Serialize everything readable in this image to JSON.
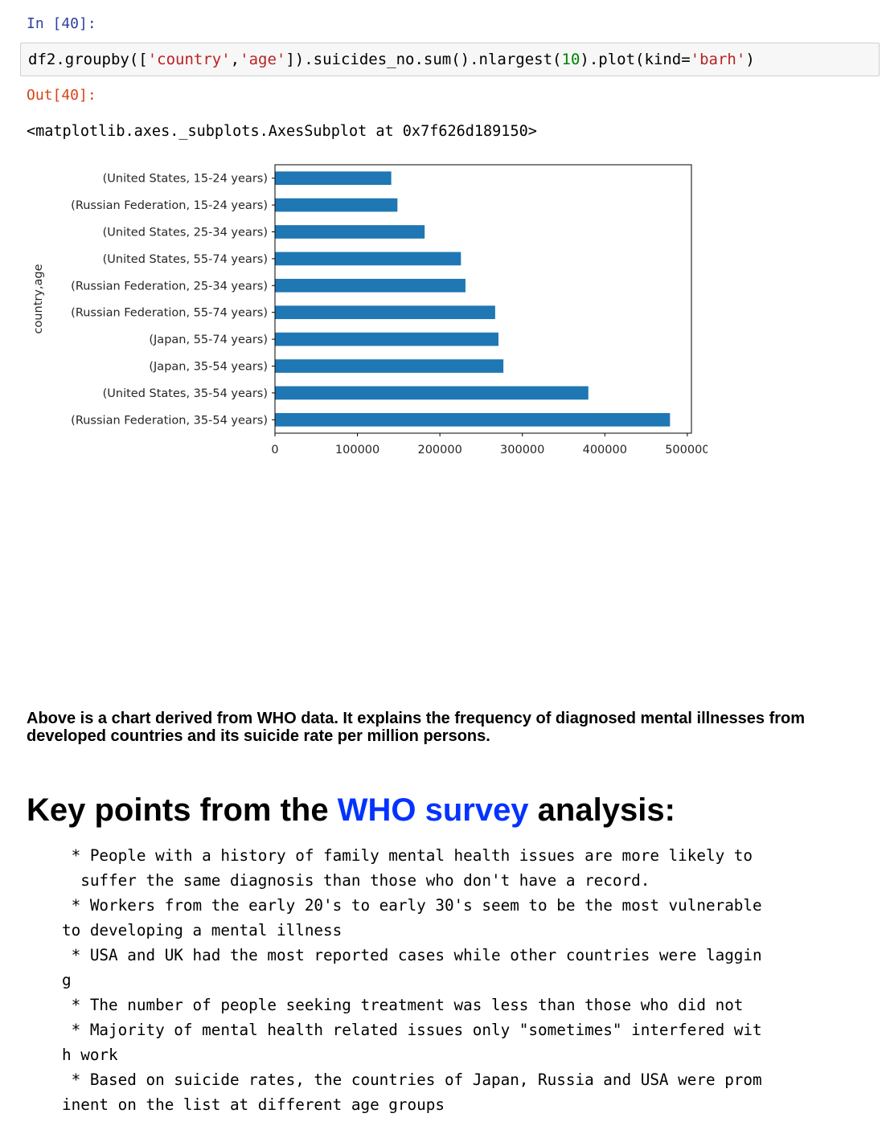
{
  "cell_in": {
    "prompt": "In [40]:"
  },
  "code": {
    "p1": "df2.groupby([",
    "s1": "'country'",
    "p2": ",",
    "s2": "'age'",
    "p3": "]).suicides_no.sum().nlargest(",
    "n1": "10",
    "p4": ").plot(kind=",
    "s3": "'barh'",
    "p5": ")"
  },
  "cell_out": {
    "prompt": "Out[40]:",
    "text": "<matplotlib.axes._subplots.AxesSubplot at 0x7f626d189150>"
  },
  "colors": {
    "bar": "#1f77b4",
    "link": "#0433ff",
    "in_prompt": "#303f9f",
    "out_prompt": "#d84315"
  },
  "chart_data": {
    "type": "bar",
    "orientation": "horizontal",
    "categories": [
      "(United States, 15-24 years)",
      "(Russian Federation, 15-24 years)",
      "(United States, 25-34 years)",
      "(United States, 55-74 years)",
      "(Russian Federation, 25-34 years)",
      "(Russian Federation, 55-74 years)",
      "(Japan, 55-74 years)",
      "(Japan, 35-54 years)",
      "(United States, 35-54 years)",
      "(Russian Federation, 35-54 years)"
    ],
    "values": [
      141000,
      148500,
      181500,
      225500,
      231000,
      267000,
      271000,
      277000,
      380000,
      479000
    ],
    "xlabel": "",
    "ylabel": "country,age",
    "xlim": [
      0,
      505000
    ],
    "xticks": [
      0,
      100000,
      200000,
      300000,
      400000,
      500000
    ],
    "grid": false,
    "title": ""
  },
  "description": "Above is a chart derived from WHO data. It explains the frequency of diagnosed mental illnesses from developed countries and its suicide rate per million persons.",
  "heading": {
    "before": "Key points from the ",
    "link": "WHO survey",
    "after": " analysis:"
  },
  "notes": " * People with a history of family mental health issues are more likely to\n  suffer the same diagnosis than those who don't have a record.\n * Workers from the early 20's to early 30's seem to be the most vulnerable\nto developing a mental illness\n * USA and UK had the most reported cases while other countries were laggin\ng\n * The number of people seeking treatment was less than those who did not\n * Majority of mental health related issues only \"sometimes\" interfered wit\nh work\n * Based on suicide rates, the countries of Japan, Russia and USA were prom\ninent on the list at different age groups"
}
